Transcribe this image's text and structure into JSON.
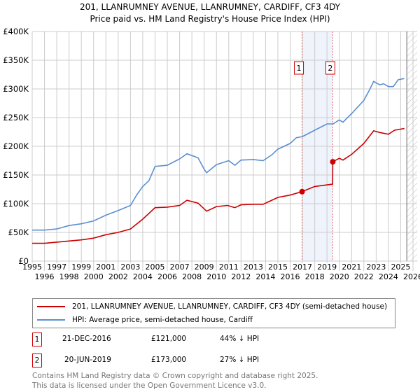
{
  "chart_data": {
    "type": "line",
    "title": "201, LLANRUMNEY AVENUE, LLANRUMNEY, CARDIFF, CF3 4DY",
    "subtitle": "Price paid vs. HM Land Registry's House Price Index (HPI)",
    "xlim": [
      1995,
      2026
    ],
    "ylim": [
      0,
      400000
    ],
    "x_ticks": [
      "1995",
      "1996",
      "1997",
      "1998",
      "1999",
      "2000",
      "2001",
      "2002",
      "2003",
      "2004",
      "2005",
      "2006",
      "2007",
      "2008",
      "2009",
      "2010",
      "2011",
      "2012",
      "2013",
      "2014",
      "2015",
      "2016",
      "2017",
      "2018",
      "2019",
      "2020",
      "2021",
      "2022",
      "2023",
      "2024",
      "2025",
      "2026"
    ],
    "y_ticks": [
      {
        "v": 0,
        "label": "£0"
      },
      {
        "v": 50000,
        "label": "£50K"
      },
      {
        "v": 100000,
        "label": "£100K"
      },
      {
        "v": 150000,
        "label": "£150K"
      },
      {
        "v": 200000,
        "label": "£200K"
      },
      {
        "v": 250000,
        "label": "£250K"
      },
      {
        "v": 300000,
        "label": "£300K"
      },
      {
        "v": 350000,
        "label": "£350K"
      },
      {
        "v": 400000,
        "label": "£400K"
      }
    ],
    "grid": true,
    "series": [
      {
        "name": "201, LLANRUMNEY AVENUE, LLANRUMNEY, CARDIFF, CF3 4DY (semi-detached house)",
        "color": "#cc0000",
        "x": [
          1995,
          1996,
          1997,
          1998,
          1999,
          2000,
          2001,
          2002,
          2003,
          2004,
          2005,
          2006,
          2007,
          2007.6,
          2008.5,
          2009.2,
          2010,
          2010.9,
          2011.5,
          2012,
          2013,
          2013.8,
          2014.5,
          2015,
          2016,
          2016.97,
          2018,
          2019.46,
          2019.47,
          2020,
          2020.3,
          2021,
          2022,
          2022.8,
          2023.3,
          2024,
          2024.5,
          2025.3
        ],
        "y": [
          31000,
          31000,
          33000,
          35000,
          37000,
          40000,
          46000,
          50000,
          56000,
          73000,
          93000,
          94000,
          97000,
          106000,
          101000,
          87000,
          95000,
          97000,
          93000,
          98000,
          99000,
          99000,
          106000,
          111000,
          115000,
          121000,
          130000,
          134000,
          173000,
          179000,
          176000,
          186000,
          205000,
          227000,
          224000,
          221000,
          228000,
          231000
        ]
      },
      {
        "name": "HPI: Average price, semi-detached house, Cardiff",
        "color": "#5b8fd1",
        "x": [
          1995,
          1996,
          1997,
          1998,
          1999,
          2000,
          2001,
          2002,
          2003,
          2003.5,
          2004,
          2004.5,
          2005,
          2006,
          2007,
          2007.6,
          2008.5,
          2009,
          2009.2,
          2010,
          2011,
          2011.5,
          2012,
          2013,
          2013.8,
          2014.5,
          2015,
          2016,
          2016.5,
          2017,
          2018,
          2019,
          2019.5,
          2020,
          2020.3,
          2021,
          2022,
          2022.5,
          2022.8,
          2023.3,
          2023.6,
          2024,
          2024.4,
          2024.8,
          2025.3
        ],
        "y": [
          54000,
          54000,
          56000,
          62000,
          65000,
          70000,
          80000,
          88000,
          97000,
          115000,
          130000,
          140000,
          165000,
          167000,
          178000,
          187000,
          180000,
          160000,
          154000,
          168000,
          175000,
          167000,
          176000,
          177000,
          175000,
          185000,
          195000,
          205000,
          215000,
          217000,
          228000,
          239000,
          239000,
          246000,
          242000,
          257000,
          280000,
          300000,
          313000,
          307000,
          309000,
          304000,
          304000,
          316000,
          318000
        ]
      }
    ],
    "sales": [
      {
        "id": "1",
        "x": 2016.97,
        "y": 121000,
        "date": "21-DEC-2016",
        "price": "£121,000",
        "hpi": "44% ↓ HPI"
      },
      {
        "id": "2",
        "x": 2019.47,
        "y": 173000,
        "date": "20-JUN-2019",
        "price": "£173,000",
        "hpi": "27% ↓ HPI"
      }
    ],
    "forecast_from": 2025.5,
    "legend": "bottom"
  },
  "footer": {
    "line1": "Contains HM Land Registry data © Crown copyright and database right 2025.",
    "line2": "This data is licensed under the Open Government Licence v3.0."
  }
}
